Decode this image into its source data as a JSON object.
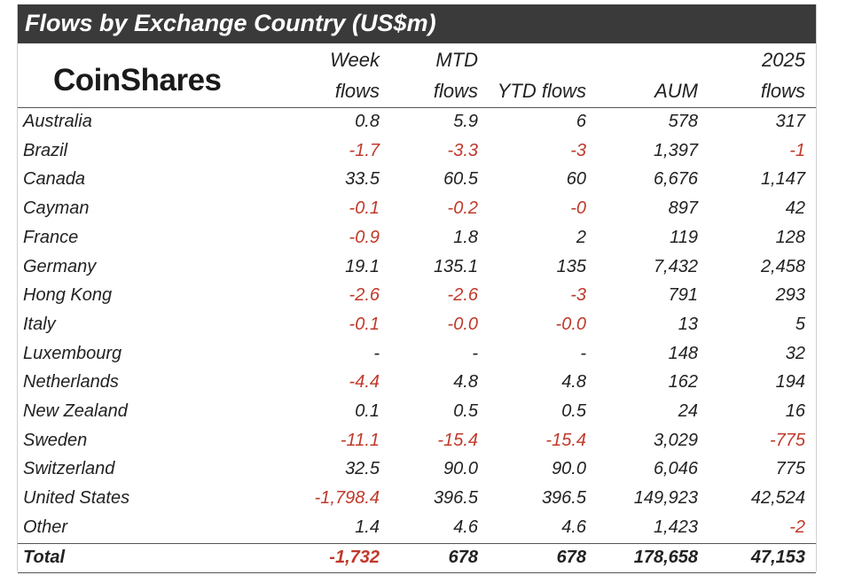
{
  "title": "Flows by Exchange Country (US$m)",
  "logo": "CoinShares",
  "headers": {
    "week_line1": "Week",
    "week_line2": "flows",
    "mtd_line1": "MTD",
    "mtd_line2": "flows",
    "ytd": "YTD flows",
    "aum": "AUM",
    "y2025_line1": "2025",
    "y2025_line2": "flows"
  },
  "colors": {
    "title_bg": "#3a3a3a",
    "negative": "#c0392b",
    "text": "#222222"
  },
  "rows": [
    {
      "country": "Australia",
      "week": "0.8",
      "mtd": "5.9",
      "ytd": "6",
      "aum": "578",
      "flows2025": "317"
    },
    {
      "country": "Brazil",
      "week": "-1.7",
      "mtd": "-3.3",
      "ytd": "-3",
      "aum": "1,397",
      "flows2025": "-1"
    },
    {
      "country": "Canada",
      "week": "33.5",
      "mtd": "60.5",
      "ytd": "60",
      "aum": "6,676",
      "flows2025": "1,147"
    },
    {
      "country": "Cayman",
      "week": "-0.1",
      "mtd": "-0.2",
      "ytd": "-0",
      "aum": "897",
      "flows2025": "42"
    },
    {
      "country": "France",
      "week": "-0.9",
      "mtd": "1.8",
      "ytd": "2",
      "aum": "119",
      "flows2025": "128"
    },
    {
      "country": "Germany",
      "week": "19.1",
      "mtd": "135.1",
      "ytd": "135",
      "aum": "7,432",
      "flows2025": "2,458"
    },
    {
      "country": "Hong Kong",
      "week": "-2.6",
      "mtd": "-2.6",
      "ytd": "-3",
      "aum": "791",
      "flows2025": "293"
    },
    {
      "country": "Italy",
      "week": "-0.1",
      "mtd": "-0.0",
      "ytd": "-0.0",
      "aum": "13",
      "flows2025": "5"
    },
    {
      "country": "Luxembourg",
      "week": "-",
      "mtd": "-",
      "ytd": "-",
      "aum": "148",
      "flows2025": "32"
    },
    {
      "country": "Netherlands",
      "week": "-4.4",
      "mtd": "4.8",
      "ytd": "4.8",
      "aum": "162",
      "flows2025": "194"
    },
    {
      "country": "New Zealand",
      "week": "0.1",
      "mtd": "0.5",
      "ytd": "0.5",
      "aum": "24",
      "flows2025": "16"
    },
    {
      "country": "Sweden",
      "week": "-11.1",
      "mtd": "-15.4",
      "ytd": "-15.4",
      "aum": "3,029",
      "flows2025": "-775"
    },
    {
      "country": "Switzerland",
      "week": "32.5",
      "mtd": "90.0",
      "ytd": "90.0",
      "aum": "6,046",
      "flows2025": "775"
    },
    {
      "country": "United States",
      "week": "-1,798.4",
      "mtd": "396.5",
      "ytd": "396.5",
      "aum": "149,923",
      "flows2025": "42,524"
    },
    {
      "country": "Other",
      "week": "1.4",
      "mtd": "4.6",
      "ytd": "4.6",
      "aum": "1,423",
      "flows2025": "-2"
    }
  ],
  "total": {
    "country": "Total",
    "week": "-1,732",
    "mtd": "678",
    "ytd": "678",
    "aum": "178,658",
    "flows2025": "47,153"
  }
}
